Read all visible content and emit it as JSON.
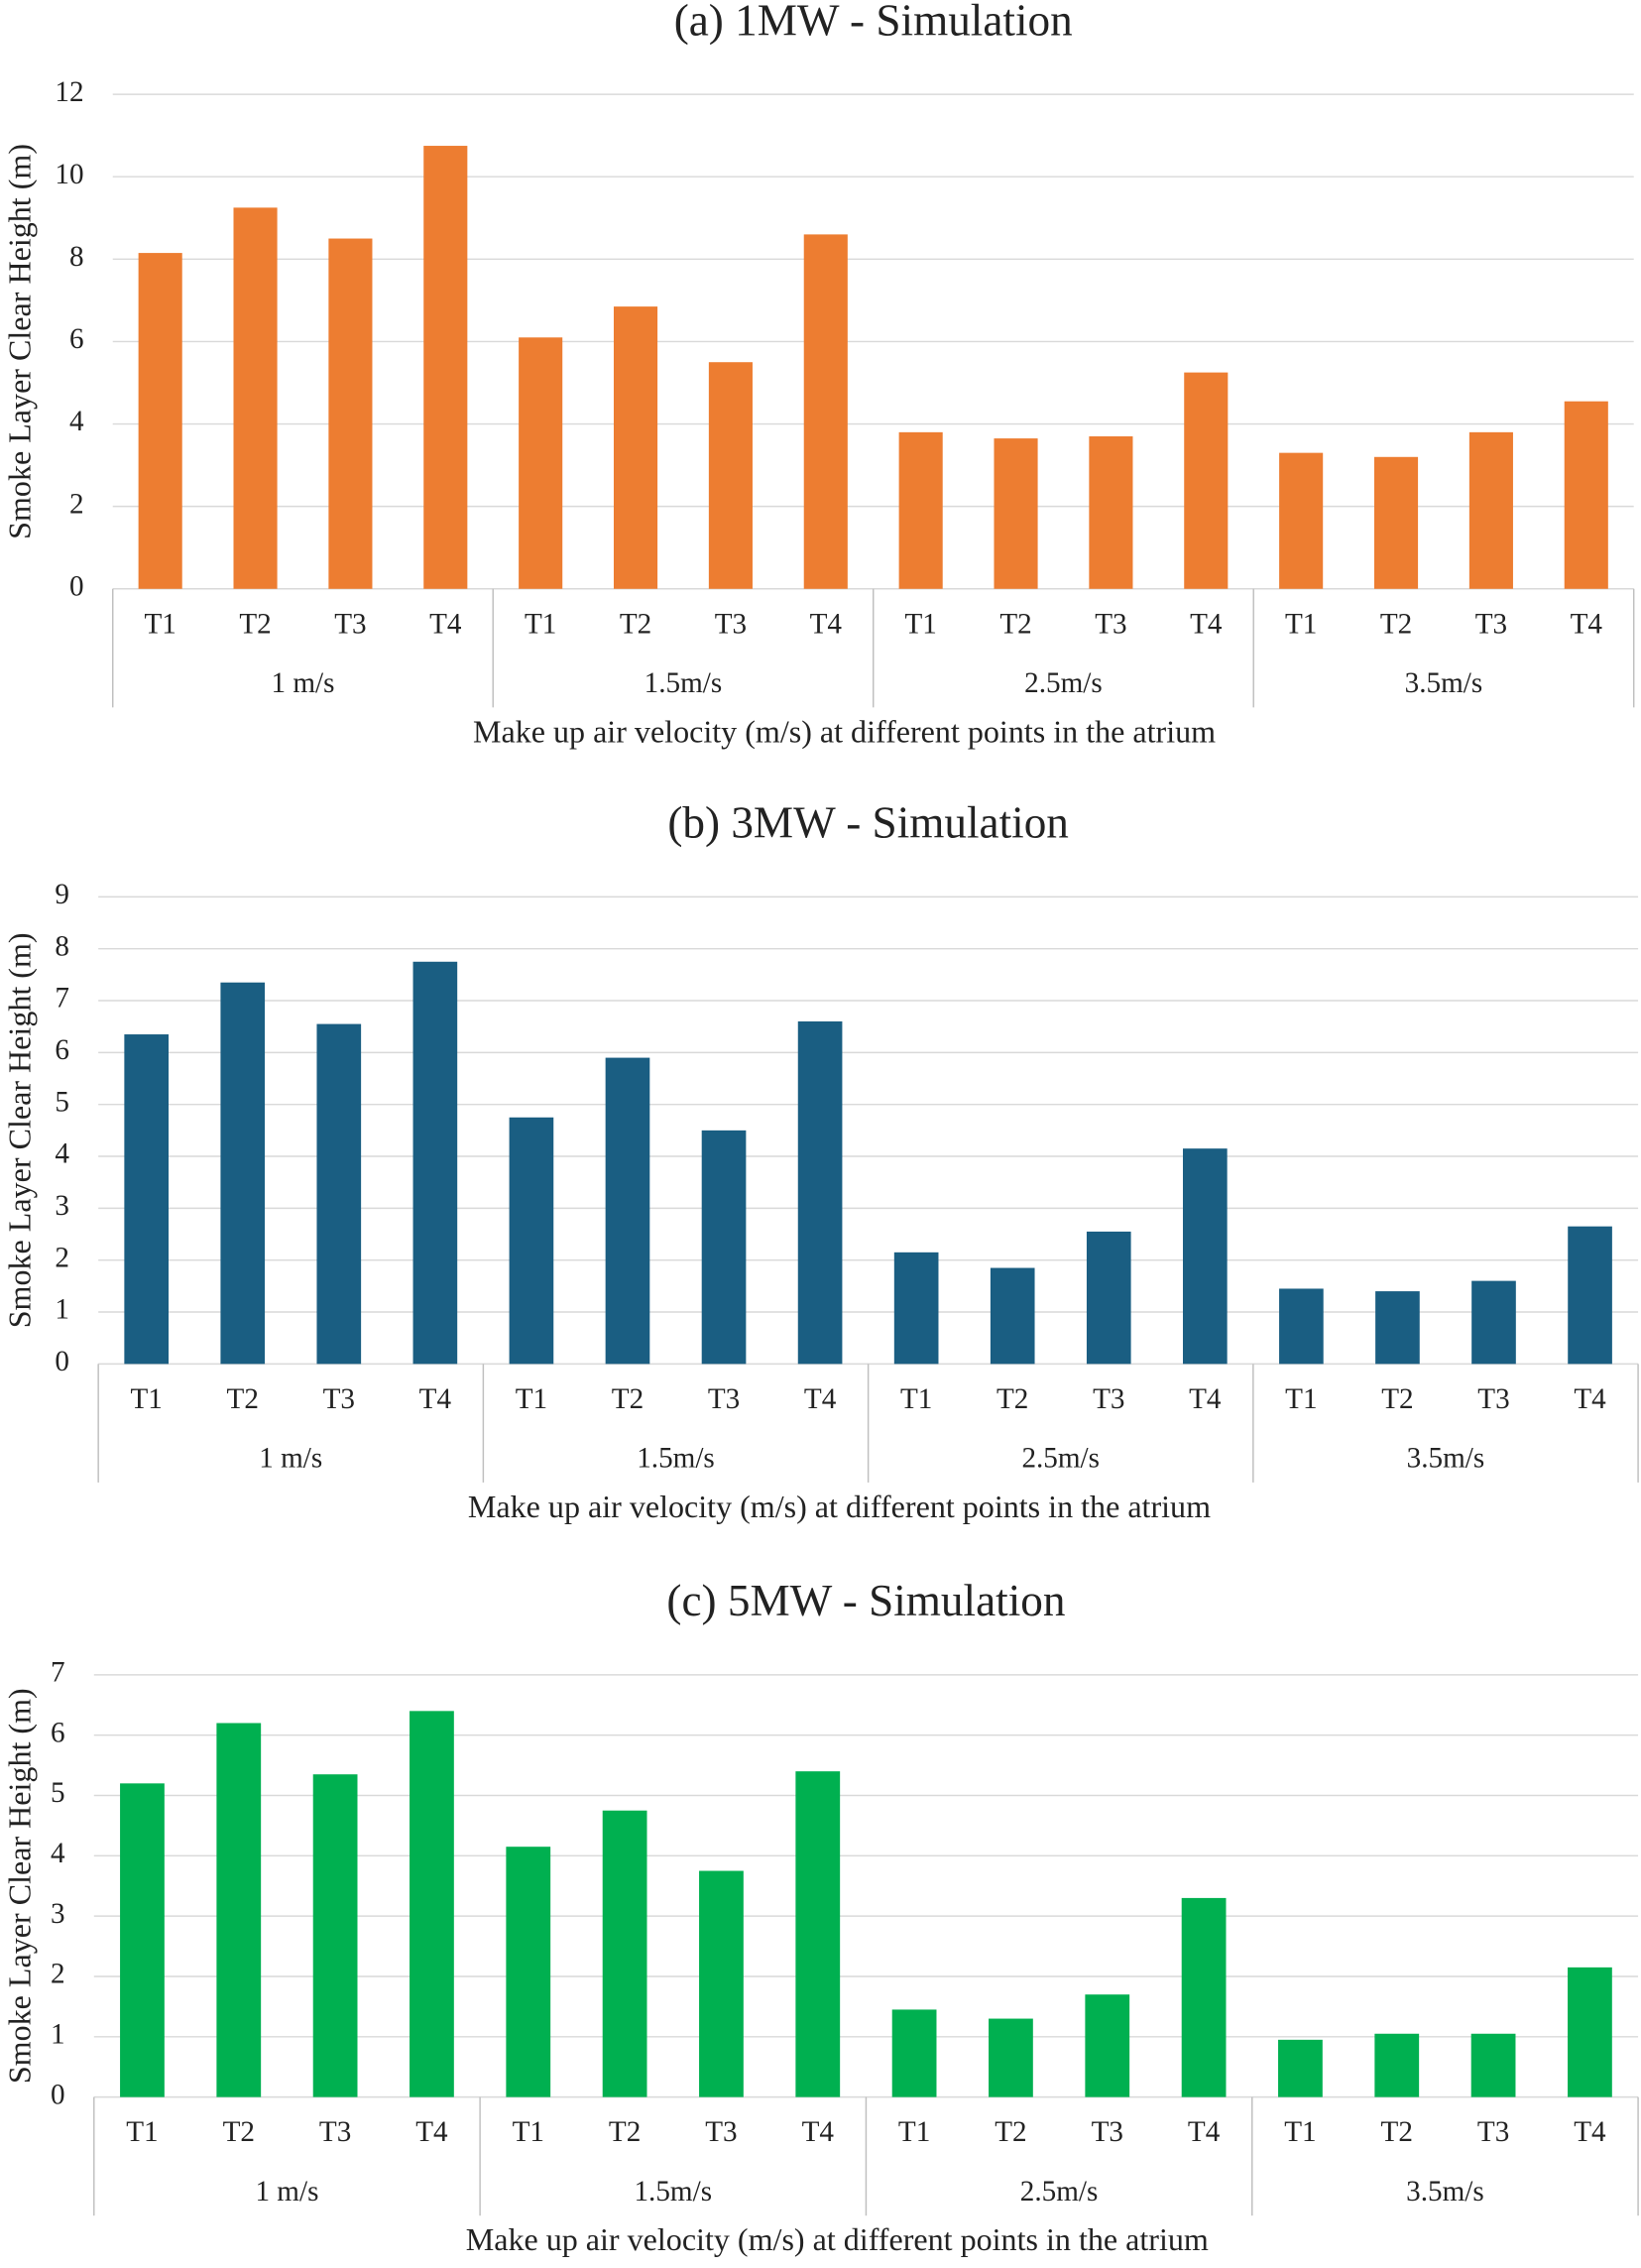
{
  "chart_data": [
    {
      "type": "bar",
      "title": "(a) 1MW - Simulation",
      "y_label": "Smoke Layer Clear Height (m)",
      "x_label": "Make up air velocity (m/s) at different points in the atrium",
      "categories": [
        "T1",
        "T2",
        "T3",
        "T4",
        "T1",
        "T2",
        "T3",
        "T4",
        "T1",
        "T2",
        "T3",
        "T4",
        "T1",
        "T2",
        "T3",
        "T4"
      ],
      "groups": [
        "1 m/s",
        "1.5m/s",
        "2.5m/s",
        "3.5m/s"
      ],
      "values": [
        8.15,
        9.25,
        8.5,
        10.75,
        6.1,
        6.85,
        5.5,
        8.6,
        3.8,
        3.65,
        3.7,
        5.25,
        3.3,
        3.2,
        3.8,
        4.55
      ],
      "color": "#ed7d31",
      "ylim": [
        0,
        12
      ],
      "yticks": [
        0,
        2,
        4,
        6,
        8,
        10,
        12
      ],
      "grid": true
    },
    {
      "type": "bar",
      "title": "(b) 3MW - Simulation",
      "y_label": "Smoke Layer Clear Height (m)",
      "x_label": "Make up air velocity (m/s) at different points in the atrium",
      "categories": [
        "T1",
        "T2",
        "T3",
        "T4",
        "T1",
        "T2",
        "T3",
        "T4",
        "T1",
        "T2",
        "T3",
        "T4",
        "T1",
        "T2",
        "T3",
        "T4"
      ],
      "groups": [
        "1 m/s",
        "1.5m/s",
        "2.5m/s",
        "3.5m/s"
      ],
      "values": [
        6.35,
        7.35,
        6.55,
        7.75,
        4.75,
        5.9,
        4.5,
        6.6,
        2.15,
        1.85,
        2.55,
        4.15,
        1.45,
        1.4,
        1.6,
        2.65
      ],
      "color": "#1a5e82",
      "ylim": [
        0,
        9
      ],
      "yticks": [
        0,
        1,
        2,
        3,
        4,
        5,
        6,
        7,
        8,
        9
      ],
      "grid": true
    },
    {
      "type": "bar",
      "title": "(c) 5MW - Simulation",
      "y_label": "Smoke Layer Clear Height (m)",
      "x_label": "Make up air velocity (m/s) at different points in the atrium",
      "categories": [
        "T1",
        "T2",
        "T3",
        "T4",
        "T1",
        "T2",
        "T3",
        "T4",
        "T1",
        "T2",
        "T3",
        "T4",
        "T1",
        "T2",
        "T3",
        "T4"
      ],
      "groups": [
        "1 m/s",
        "1.5m/s",
        "2.5m/s",
        "3.5m/s"
      ],
      "values": [
        5.2,
        6.2,
        5.35,
        6.4,
        4.15,
        4.75,
        3.75,
        5.4,
        1.45,
        1.3,
        1.7,
        3.3,
        0.95,
        1.05,
        1.05,
        2.15
      ],
      "color": "#00b050",
      "ylim": [
        0,
        7
      ],
      "yticks": [
        0,
        1,
        2,
        3,
        4,
        5,
        6,
        7
      ],
      "grid": true
    }
  ]
}
